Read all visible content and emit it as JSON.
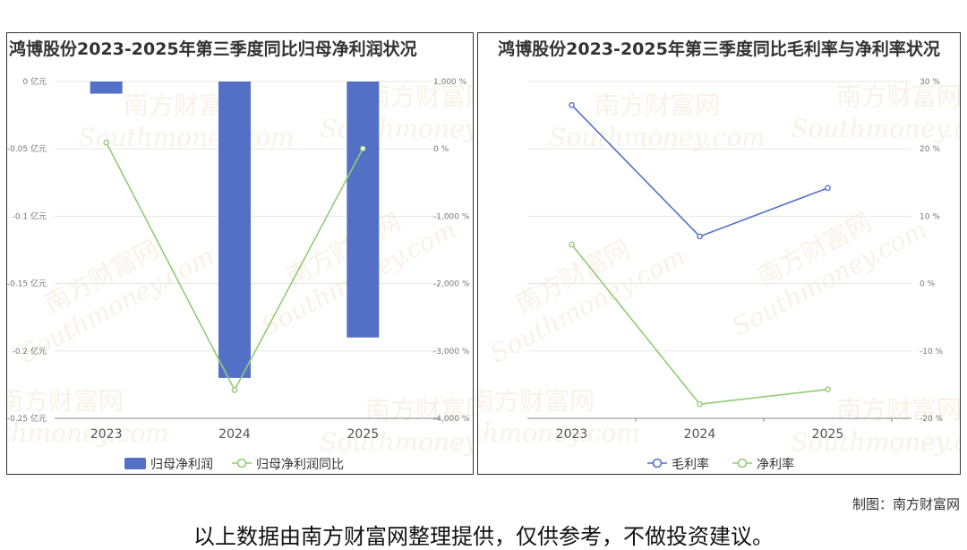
{
  "left": {
    "title": "鸿博股份2023-2025年第三季度同比归母净利润状况",
    "legend": [
      "归母净利润",
      "归母净利润同比"
    ],
    "watermark": [
      "南方财富网",
      "Southmoney.com"
    ]
  },
  "right": {
    "title": "鸿博股份2023-2025年第三季度同比毛利率与净利率状况",
    "legend": [
      "毛利率",
      "净利率"
    ],
    "watermark": [
      "南方财富网",
      "Southmoney.com"
    ]
  },
  "footer": {
    "credit": "制图：南方财富网",
    "disclaimer": "以上数据由南方财富网整理提供，仅供参考，不做投资建议。"
  },
  "chart_data": [
    {
      "type": "bar",
      "title": "鸿博股份2023-2025年第三季度同比归母净利润状况",
      "categories": [
        "2023",
        "2024",
        "2025"
      ],
      "y_left_ticks": [
        "0 亿元",
        "-0.05 亿元",
        "-0.1 亿元",
        "-0.15 亿元",
        "-0.2 亿元",
        "-0.25 亿元"
      ],
      "y_right_ticks": [
        "1,000 %",
        "0 %",
        "-1,000 %",
        "-2,000 %",
        "-3,000 %",
        "-4,000 %"
      ],
      "ylim_left": [
        -0.25,
        0
      ],
      "ylim_right": [
        -4000,
        1000
      ],
      "series": [
        {
          "name": "归母净利润",
          "type": "bar",
          "axis": "left",
          "color": "#5470c6",
          "values": [
            -0.009,
            -0.22,
            -0.19
          ]
        },
        {
          "name": "归母净利润同比",
          "type": "line",
          "axis": "right",
          "color": "#91cc75",
          "values": [
            95,
            -3580,
            5
          ]
        }
      ],
      "legend": "bottom",
      "grid": true
    },
    {
      "type": "line",
      "title": "鸿博股份2023-2025年第三季度同比毛利率与净利率状况",
      "categories": [
        "2023",
        "2024",
        "2025"
      ],
      "y_right_ticks": [
        "30 %",
        "20 %",
        "10 %",
        "0 %",
        "-10 %",
        "-20 %"
      ],
      "ylim": [
        -20,
        30
      ],
      "series": [
        {
          "name": "毛利率",
          "color": "#5470c6",
          "values": [
            26.5,
            7.0,
            14.2
          ]
        },
        {
          "name": "净利率",
          "color": "#91cc75",
          "values": [
            5.8,
            -17.9,
            -15.7
          ]
        }
      ],
      "legend": "bottom",
      "grid": true
    }
  ]
}
